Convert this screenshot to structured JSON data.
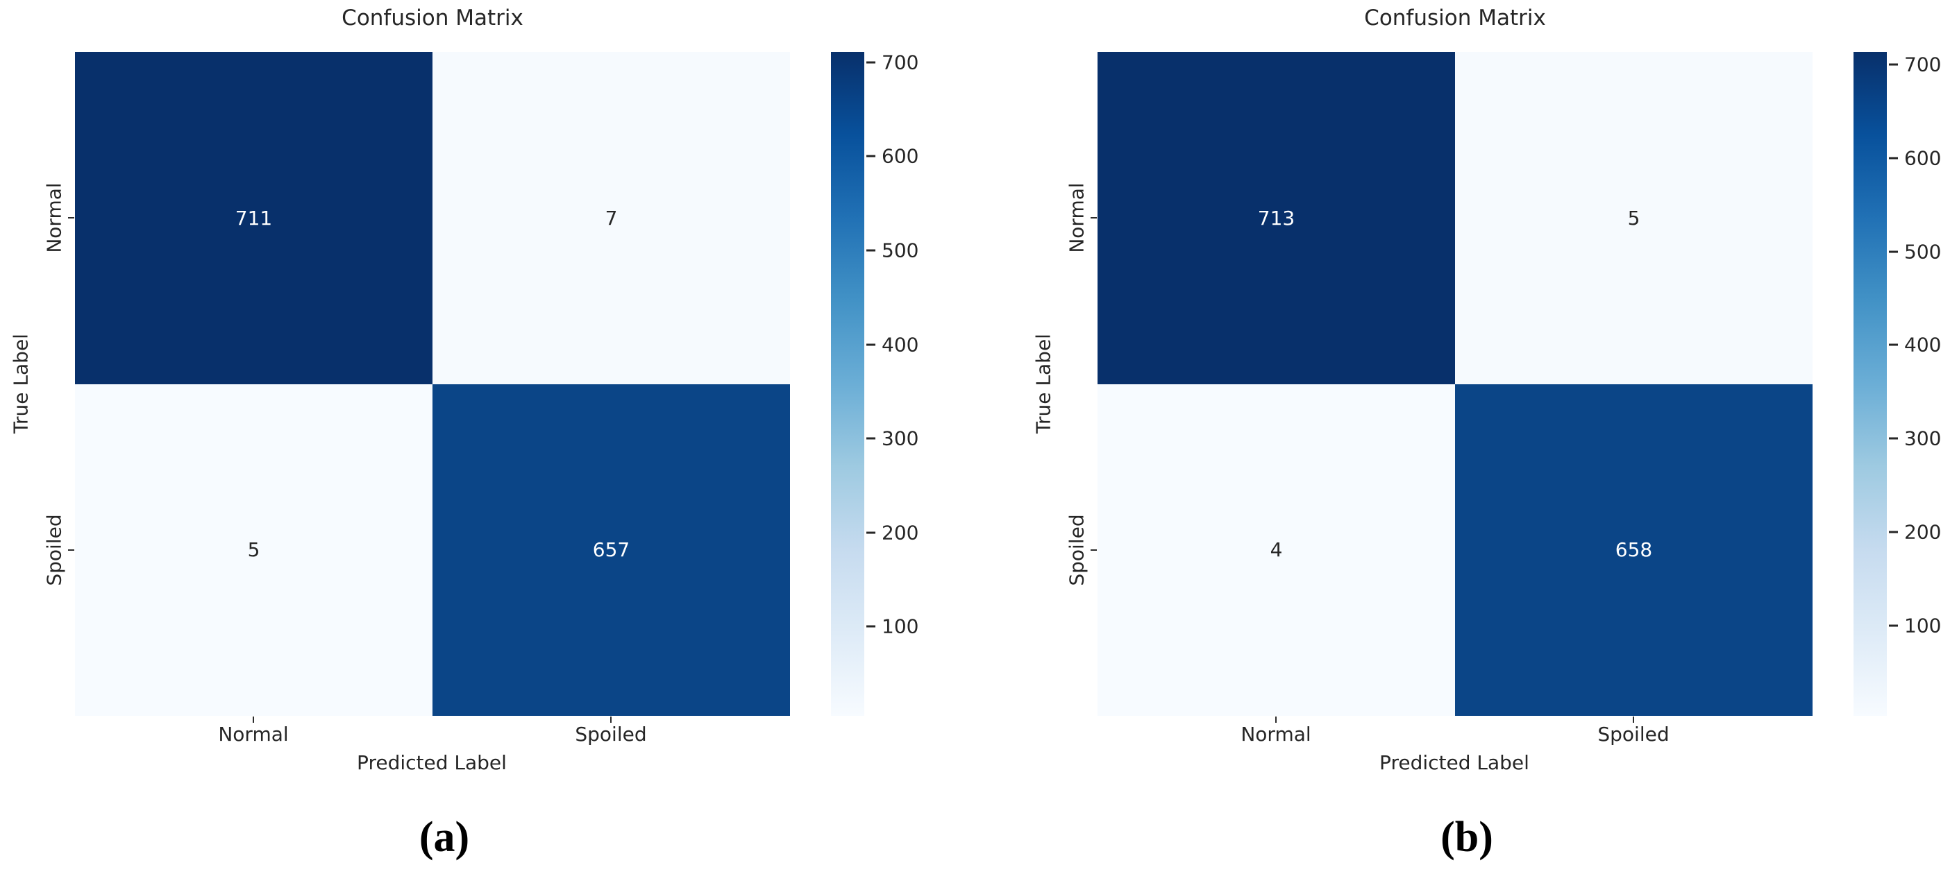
{
  "figure": {
    "background": "#ffffff",
    "text_color": "#262626",
    "colormap": "Blues",
    "colormap_max_color": "#08306b",
    "colormap_min_color": "#f7fbff"
  },
  "chart_data": [
    {
      "type": "heatmap",
      "title": "Confusion Matrix",
      "xlabel": "Predicted Label",
      "ylabel": "True Label",
      "x_tick_labels": [
        "Normal",
        "Spoiled"
      ],
      "y_tick_labels": [
        "Normal",
        "Spoiled"
      ],
      "rows": [
        [
          711,
          7
        ],
        [
          5,
          657
        ]
      ],
      "vmin": 5,
      "vmax": 711,
      "colorbar_ticks": [
        700,
        600,
        500,
        400,
        300,
        200,
        100
      ],
      "legend_position": "right",
      "cell_colors": [
        [
          "#08306b",
          "#f6fafe"
        ],
        [
          "#f7fbff",
          "#0b4587"
        ]
      ],
      "cell_text_colors": [
        [
          "#ffffff",
          "#262626"
        ],
        [
          "#262626",
          "#ffffff"
        ]
      ],
      "caption": "(a)"
    },
    {
      "type": "heatmap",
      "title": "Confusion Matrix",
      "xlabel": "Predicted Label",
      "ylabel": "True Label",
      "x_tick_labels": [
        "Normal",
        "Spoiled"
      ],
      "y_tick_labels": [
        "Normal",
        "Spoiled"
      ],
      "rows": [
        [
          713,
          5
        ],
        [
          4,
          658
        ]
      ],
      "vmin": 4,
      "vmax": 713,
      "colorbar_ticks": [
        700,
        600,
        500,
        400,
        300,
        200,
        100
      ],
      "legend_position": "right",
      "cell_colors": [
        [
          "#08306b",
          "#f6fafe"
        ],
        [
          "#f7fbff",
          "#0b4587"
        ]
      ],
      "cell_text_colors": [
        [
          "#ffffff",
          "#262626"
        ],
        [
          "#262626",
          "#ffffff"
        ]
      ],
      "caption": "(b)"
    }
  ]
}
